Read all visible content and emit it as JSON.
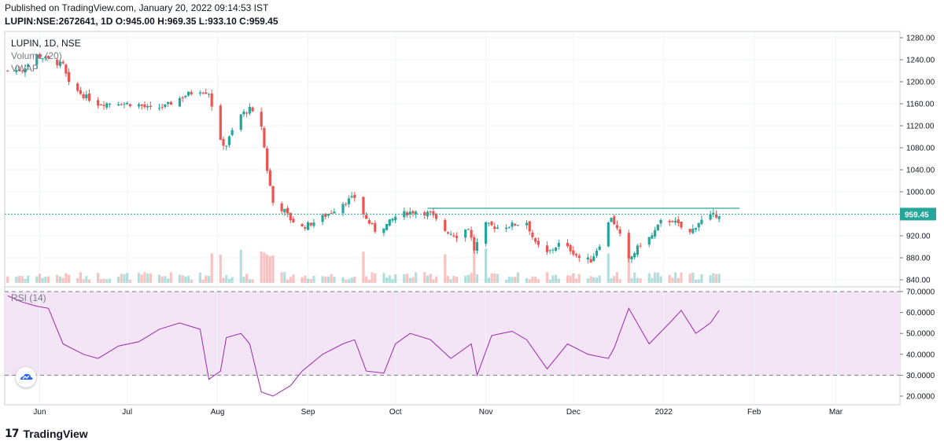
{
  "header": {
    "published": "Published on TradingView.com, January 20, 2022 09:14:53 IST",
    "ohlc": "LUPIN:NSE:2672641, 1D O:945.00 H:969.35 L:933.10 C:959.45"
  },
  "legend": {
    "title": "LUPIN, 1D, NSE",
    "volume": "Volume (20)",
    "vwap": "VWAP",
    "rsi": "RSI (14)"
  },
  "footer": {
    "brand": "TradingView",
    "logo_icon": "tradingview-logo-icon"
  },
  "colors": {
    "up": "#26a69a",
    "down": "#ef5350",
    "rsi_line": "#9c27b0",
    "rsi_band": "#f3e5f5",
    "last_price": "#26a69a",
    "resistance": "#26a69a"
  },
  "chart_data": [
    {
      "type": "candlestick",
      "title": "LUPIN, 1D, NSE",
      "x_ticks": [
        "Jun",
        "Jul",
        "Aug",
        "Sep",
        "Oct",
        "Nov",
        "Dec",
        "2022",
        "Feb",
        "Mar"
      ],
      "y_ticks": [
        "1280.00",
        "1240.00",
        "1200.00",
        "1160.00",
        "1120.00",
        "1080.00",
        "1040.00",
        "1000.00",
        "920.00",
        "880.00",
        "840.00"
      ],
      "ylim": [
        835,
        1285
      ],
      "last_price": "959.45",
      "resistance_level": 970,
      "grid": true,
      "close_path": [
        [
          "2021-05-21",
          1220
        ],
        [
          "2021-05-26",
          1222
        ],
        [
          "2021-05-31",
          1248
        ],
        [
          "2021-06-04",
          1240
        ],
        [
          "2021-06-09",
          1230
        ],
        [
          "2021-06-11",
          1195
        ],
        [
          "2021-06-16",
          1175
        ],
        [
          "2021-06-21",
          1160
        ],
        [
          "2021-06-28",
          1162
        ],
        [
          "2021-07-05",
          1158
        ],
        [
          "2021-07-09",
          1150
        ],
        [
          "2021-07-14",
          1155
        ],
        [
          "2021-07-19",
          1170
        ],
        [
          "2021-07-22",
          1178
        ],
        [
          "2021-07-26",
          1185
        ],
        [
          "2021-07-29",
          1180
        ],
        [
          "2021-08-02",
          1090
        ],
        [
          "2021-08-04",
          1085
        ],
        [
          "2021-08-06",
          1110
        ],
        [
          "2021-08-09",
          1140
        ],
        [
          "2021-08-12",
          1150
        ],
        [
          "2021-08-16",
          1120
        ],
        [
          "2021-08-18",
          1040
        ],
        [
          "2021-08-20",
          980
        ],
        [
          "2021-08-24",
          965
        ],
        [
          "2021-08-26",
          950
        ],
        [
          "2021-08-30",
          935
        ],
        [
          "2021-09-03",
          945
        ],
        [
          "2021-09-08",
          960
        ],
        [
          "2021-09-13",
          980
        ],
        [
          "2021-09-17",
          990
        ],
        [
          "2021-09-21",
          950
        ],
        [
          "2021-09-24",
          930
        ],
        [
          "2021-09-28",
          940
        ],
        [
          "2021-10-01",
          955
        ],
        [
          "2021-10-05",
          962
        ],
        [
          "2021-10-08",
          965
        ],
        [
          "2021-10-13",
          960
        ],
        [
          "2021-10-18",
          930
        ],
        [
          "2021-10-22",
          920
        ],
        [
          "2021-10-26",
          935
        ],
        [
          "2021-10-28",
          895
        ],
        [
          "2021-11-01",
          940
        ],
        [
          "2021-11-05",
          935
        ],
        [
          "2021-11-10",
          940
        ],
        [
          "2021-11-15",
          945
        ],
        [
          "2021-11-18",
          905
        ],
        [
          "2021-11-22",
          888
        ],
        [
          "2021-11-26",
          905
        ],
        [
          "2021-11-30",
          895
        ],
        [
          "2021-12-03",
          880
        ],
        [
          "2021-12-07",
          875
        ],
        [
          "2021-12-10",
          905
        ],
        [
          "2021-12-14",
          955
        ],
        [
          "2021-12-17",
          920
        ],
        [
          "2021-12-20",
          875
        ],
        [
          "2021-12-24",
          905
        ],
        [
          "2021-12-28",
          920
        ],
        [
          "2021-12-31",
          945
        ],
        [
          "2022-01-04",
          948
        ],
        [
          "2022-01-07",
          935
        ],
        [
          "2022-01-10",
          925
        ],
        [
          "2022-01-13",
          945
        ],
        [
          "2022-01-17",
          955
        ],
        [
          "2022-01-20",
          959.45
        ]
      ]
    },
    {
      "type": "line",
      "title": "RSI (14)",
      "y_ticks": [
        "70.0000",
        "60.0000",
        "50.0000",
        "40.0000",
        "30.0000",
        "20.0000"
      ],
      "ylim": [
        16,
        72
      ],
      "band": [
        30,
        70
      ],
      "x": [
        "2021-05-21",
        "2021-05-26",
        "2021-05-31",
        "2021-06-04",
        "2021-06-09",
        "2021-06-16",
        "2021-06-21",
        "2021-06-28",
        "2021-07-05",
        "2021-07-12",
        "2021-07-19",
        "2021-07-26",
        "2021-07-29",
        "2021-08-02",
        "2021-08-04",
        "2021-08-09",
        "2021-08-12",
        "2021-08-16",
        "2021-08-20",
        "2021-08-26",
        "2021-08-30",
        "2021-09-06",
        "2021-09-13",
        "2021-09-17",
        "2021-09-21",
        "2021-09-27",
        "2021-10-01",
        "2021-10-06",
        "2021-10-13",
        "2021-10-20",
        "2021-10-27",
        "2021-10-29",
        "2021-11-03",
        "2021-11-10",
        "2021-11-15",
        "2021-11-22",
        "2021-11-29",
        "2021-12-06",
        "2021-12-13",
        "2021-12-15",
        "2021-12-20",
        "2021-12-27",
        "2022-01-03",
        "2022-01-07",
        "2022-01-12",
        "2022-01-17",
        "2022-01-20"
      ],
      "values": [
        68,
        65,
        63,
        62,
        45,
        40,
        38,
        44,
        46,
        52,
        55,
        52,
        28,
        32,
        48,
        50,
        45,
        22,
        20,
        25,
        32,
        40,
        45,
        47,
        32,
        31,
        45,
        50,
        47,
        38,
        45,
        30,
        49,
        51,
        47,
        33,
        45,
        40,
        38,
        43,
        62,
        45,
        55,
        61,
        50,
        55,
        61
      ]
    }
  ]
}
